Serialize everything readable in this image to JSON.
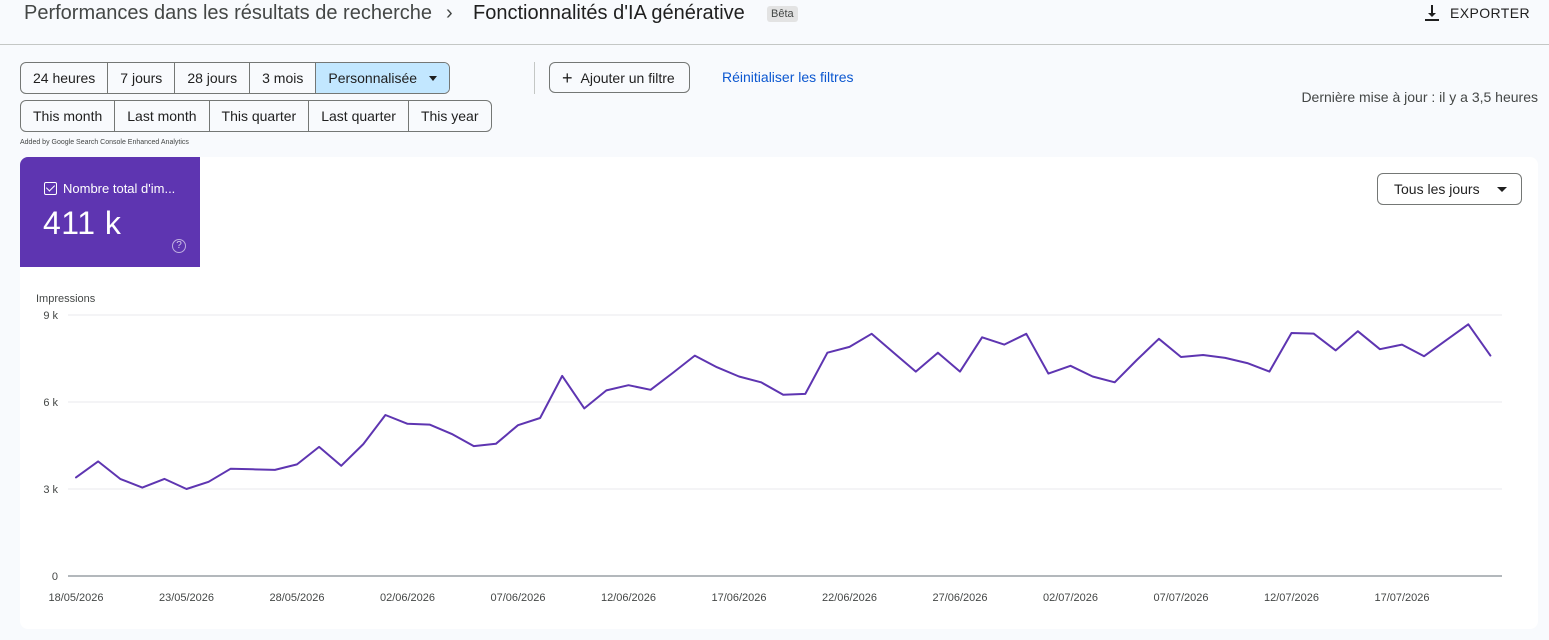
{
  "header": {
    "breadcrumb_parent": "Performances dans les résultats de recherche",
    "breadcrumb_separator": "›",
    "title": "Fonctionnalités d'IA générative",
    "badge": "Bêta",
    "export_label": "EXPORTER"
  },
  "filters": {
    "range_buttons": [
      "24 heures",
      "7 jours",
      "28 jours",
      "3 mois",
      "Personnalisée"
    ],
    "active_range": "Personnalisée",
    "quick_buttons": [
      "This month",
      "Last month",
      "This quarter",
      "Last quarter",
      "This year"
    ],
    "add_filter_label": "Ajouter un filtre",
    "reset_label": "Réinitialiser les filtres",
    "last_update": "Dernière mise à jour : il y a 3,5 heures",
    "added_by": "Added by Google Search Console Enhanced Analytics"
  },
  "metric": {
    "label": "Nombre total d'im...",
    "value": "411 k",
    "color": "#5e35b1",
    "help_icon": "help-icon"
  },
  "granularity_select": {
    "value": "Tous les jours"
  },
  "chart_data": {
    "type": "line",
    "ylabel": "Impressions",
    "ylim": [
      0,
      9000
    ],
    "yticks": [
      0,
      3000,
      6000,
      9000
    ],
    "ytick_labels": [
      "0",
      "3 k",
      "6 k",
      "9 k"
    ],
    "xtick_labels": [
      "18/05/2026",
      "23/05/2026",
      "28/05/2026",
      "02/06/2026",
      "07/06/2026",
      "12/06/2026",
      "17/06/2026",
      "22/06/2026",
      "27/06/2026",
      "02/07/2026",
      "07/07/2026",
      "12/07/2026",
      "17/07/2026"
    ],
    "x_start": "18/05/2026",
    "x_step_days": 1,
    "color": "#5e35b1",
    "series": [
      {
        "name": "Impressions",
        "values": [
          3400,
          3950,
          3350,
          3050,
          3350,
          3000,
          3250,
          3700,
          3680,
          3660,
          3850,
          4450,
          3800,
          4550,
          5550,
          5250,
          5220,
          4900,
          4480,
          4560,
          5200,
          5450,
          6900,
          5780,
          6400,
          6580,
          6420,
          7000,
          7600,
          7200,
          6880,
          6680,
          6250,
          6280,
          7700,
          7900,
          8350,
          7700,
          7050,
          7700,
          7050,
          8230,
          7980,
          8350,
          6980,
          7250,
          6880,
          6680,
          7450,
          8180,
          7550,
          7620,
          7520,
          7340,
          7050,
          8380,
          8360,
          7780,
          8440,
          7820,
          7980,
          7580,
          8130,
          8680,
          7600
        ]
      }
    ]
  }
}
